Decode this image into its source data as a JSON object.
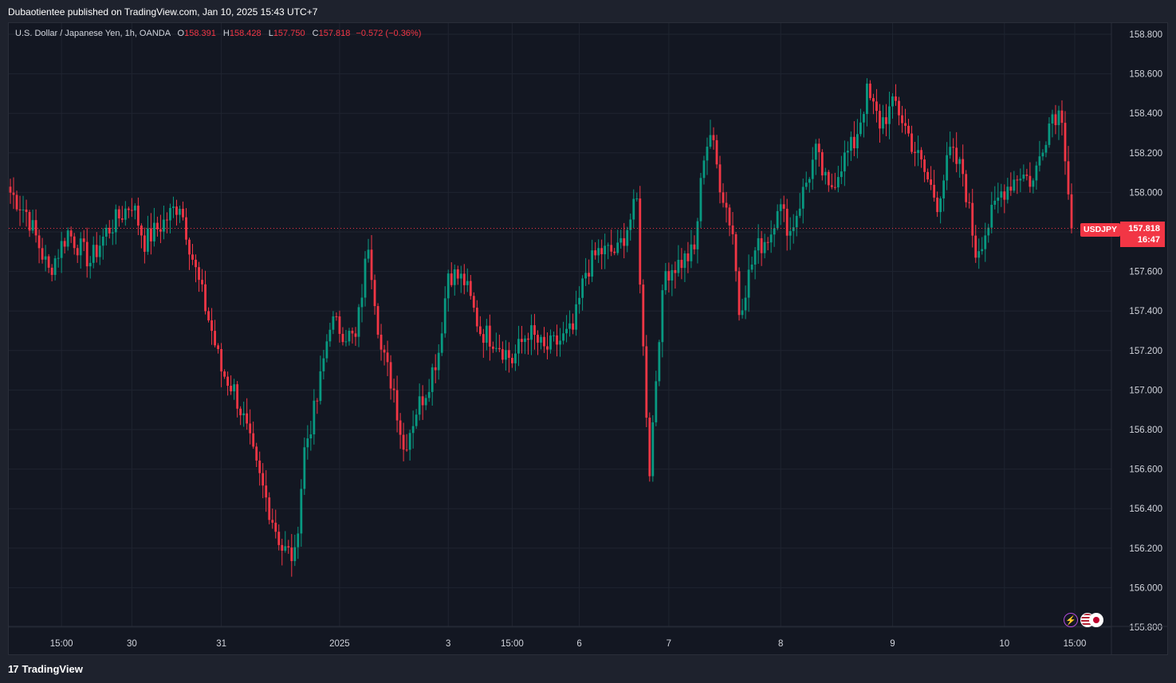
{
  "header": {
    "publish_text": "Dubaotientee published on TradingView.com, Jan 10, 2025 15:43 UTC+7"
  },
  "legend": {
    "symbol": "U.S. Dollar / Japanese Yen, 1h, OANDA",
    "o_label": "O",
    "o_value": "158.391",
    "h_label": "H",
    "h_value": "158.428",
    "l_label": "L",
    "l_value": "157.750",
    "c_label": "C",
    "c_value": "157.818",
    "change": "−0.572 (−0.36%)"
  },
  "price_tag": {
    "symbol": "USDJPY",
    "price": "157.818",
    "countdown": "16:47"
  },
  "footer": {
    "brand": "TradingView"
  },
  "icons": [
    "lightning-icon",
    "us-flag-icon",
    "japan-flag-icon"
  ],
  "colors": {
    "up": "#089981",
    "down": "#f23645",
    "background": "#131722",
    "grid": "#1f2430",
    "text": "#d1d4dc"
  },
  "chart_data": {
    "type": "candlestick",
    "symbol": "USDJPY",
    "interval": "1h",
    "current_price": 157.818,
    "ylim": [
      155.75,
      158.95
    ],
    "y_ticks": [
      "158.800",
      "158.600",
      "158.400",
      "158.200",
      "158.000",
      "157.800",
      "157.600",
      "157.400",
      "157.200",
      "157.000",
      "156.800",
      "156.600",
      "156.400",
      "156.200",
      "156.000",
      "155.800"
    ],
    "x_ticks": [
      {
        "label": "15:00",
        "index": 16
      },
      {
        "label": "30",
        "index": 38
      },
      {
        "label": "31",
        "index": 66
      },
      {
        "label": "2025",
        "index": 103
      },
      {
        "label": "3",
        "index": 137
      },
      {
        "label": "15:00",
        "index": 157
      },
      {
        "label": "6",
        "index": 178
      },
      {
        "label": "7",
        "index": 206
      },
      {
        "label": "8",
        "index": 241
      },
      {
        "label": "9",
        "index": 276
      },
      {
        "label": "10",
        "index": 311
      },
      {
        "label": "15:00",
        "index": 333
      }
    ],
    "waypoints": [
      [
        0,
        158.0
      ],
      [
        5,
        157.9
      ],
      [
        12,
        157.6
      ],
      [
        18,
        157.8
      ],
      [
        25,
        157.65
      ],
      [
        30,
        157.8
      ],
      [
        38,
        157.95
      ],
      [
        42,
        157.75
      ],
      [
        48,
        157.85
      ],
      [
        53,
        157.95
      ],
      [
        58,
        157.6
      ],
      [
        63,
        157.3
      ],
      [
        66,
        157.1
      ],
      [
        70,
        157.0
      ],
      [
        73,
        156.85
      ],
      [
        77,
        156.6
      ],
      [
        81,
        156.4
      ],
      [
        85,
        156.2
      ],
      [
        89,
        156.15
      ],
      [
        92,
        156.7
      ],
      [
        96,
        156.95
      ],
      [
        100,
        157.35
      ],
      [
        104,
        157.3
      ],
      [
        108,
        157.25
      ],
      [
        112,
        157.75
      ],
      [
        116,
        157.2
      ],
      [
        120,
        157.0
      ],
      [
        123,
        156.7
      ],
      [
        127,
        156.9
      ],
      [
        130,
        157.0
      ],
      [
        134,
        157.2
      ],
      [
        137,
        157.6
      ],
      [
        142,
        157.55
      ],
      [
        147,
        157.3
      ],
      [
        152,
        157.25
      ],
      [
        157,
        157.15
      ],
      [
        162,
        157.3
      ],
      [
        167,
        157.2
      ],
      [
        172,
        157.25
      ],
      [
        176,
        157.3
      ],
      [
        180,
        157.6
      ],
      [
        184,
        157.7
      ],
      [
        190,
        157.7
      ],
      [
        196,
        157.95
      ],
      [
        198,
        157.2
      ],
      [
        200,
        156.6
      ],
      [
        203,
        157.3
      ],
      [
        205,
        157.6
      ],
      [
        210,
        157.65
      ],
      [
        214,
        157.7
      ],
      [
        217,
        158.2
      ],
      [
        219,
        158.3
      ],
      [
        222,
        158.05
      ],
      [
        226,
        157.8
      ],
      [
        228,
        157.4
      ],
      [
        233,
        157.7
      ],
      [
        238,
        157.8
      ],
      [
        240,
        157.95
      ],
      [
        244,
        157.8
      ],
      [
        248,
        158.0
      ],
      [
        252,
        158.2
      ],
      [
        256,
        158.0
      ],
      [
        260,
        158.15
      ],
      [
        264,
        158.25
      ],
      [
        268,
        158.5
      ],
      [
        272,
        158.35
      ],
      [
        277,
        158.45
      ],
      [
        282,
        158.25
      ],
      [
        286,
        158.1
      ],
      [
        290,
        157.95
      ],
      [
        294,
        158.2
      ],
      [
        298,
        158.1
      ],
      [
        302,
        157.7
      ],
      [
        305,
        157.8
      ],
      [
        310,
        158.0
      ],
      [
        316,
        158.1
      ],
      [
        320,
        158.05
      ],
      [
        323,
        158.25
      ],
      [
        326,
        158.4
      ],
      [
        329,
        158.4
      ],
      [
        332,
        157.82
      ]
    ]
  }
}
